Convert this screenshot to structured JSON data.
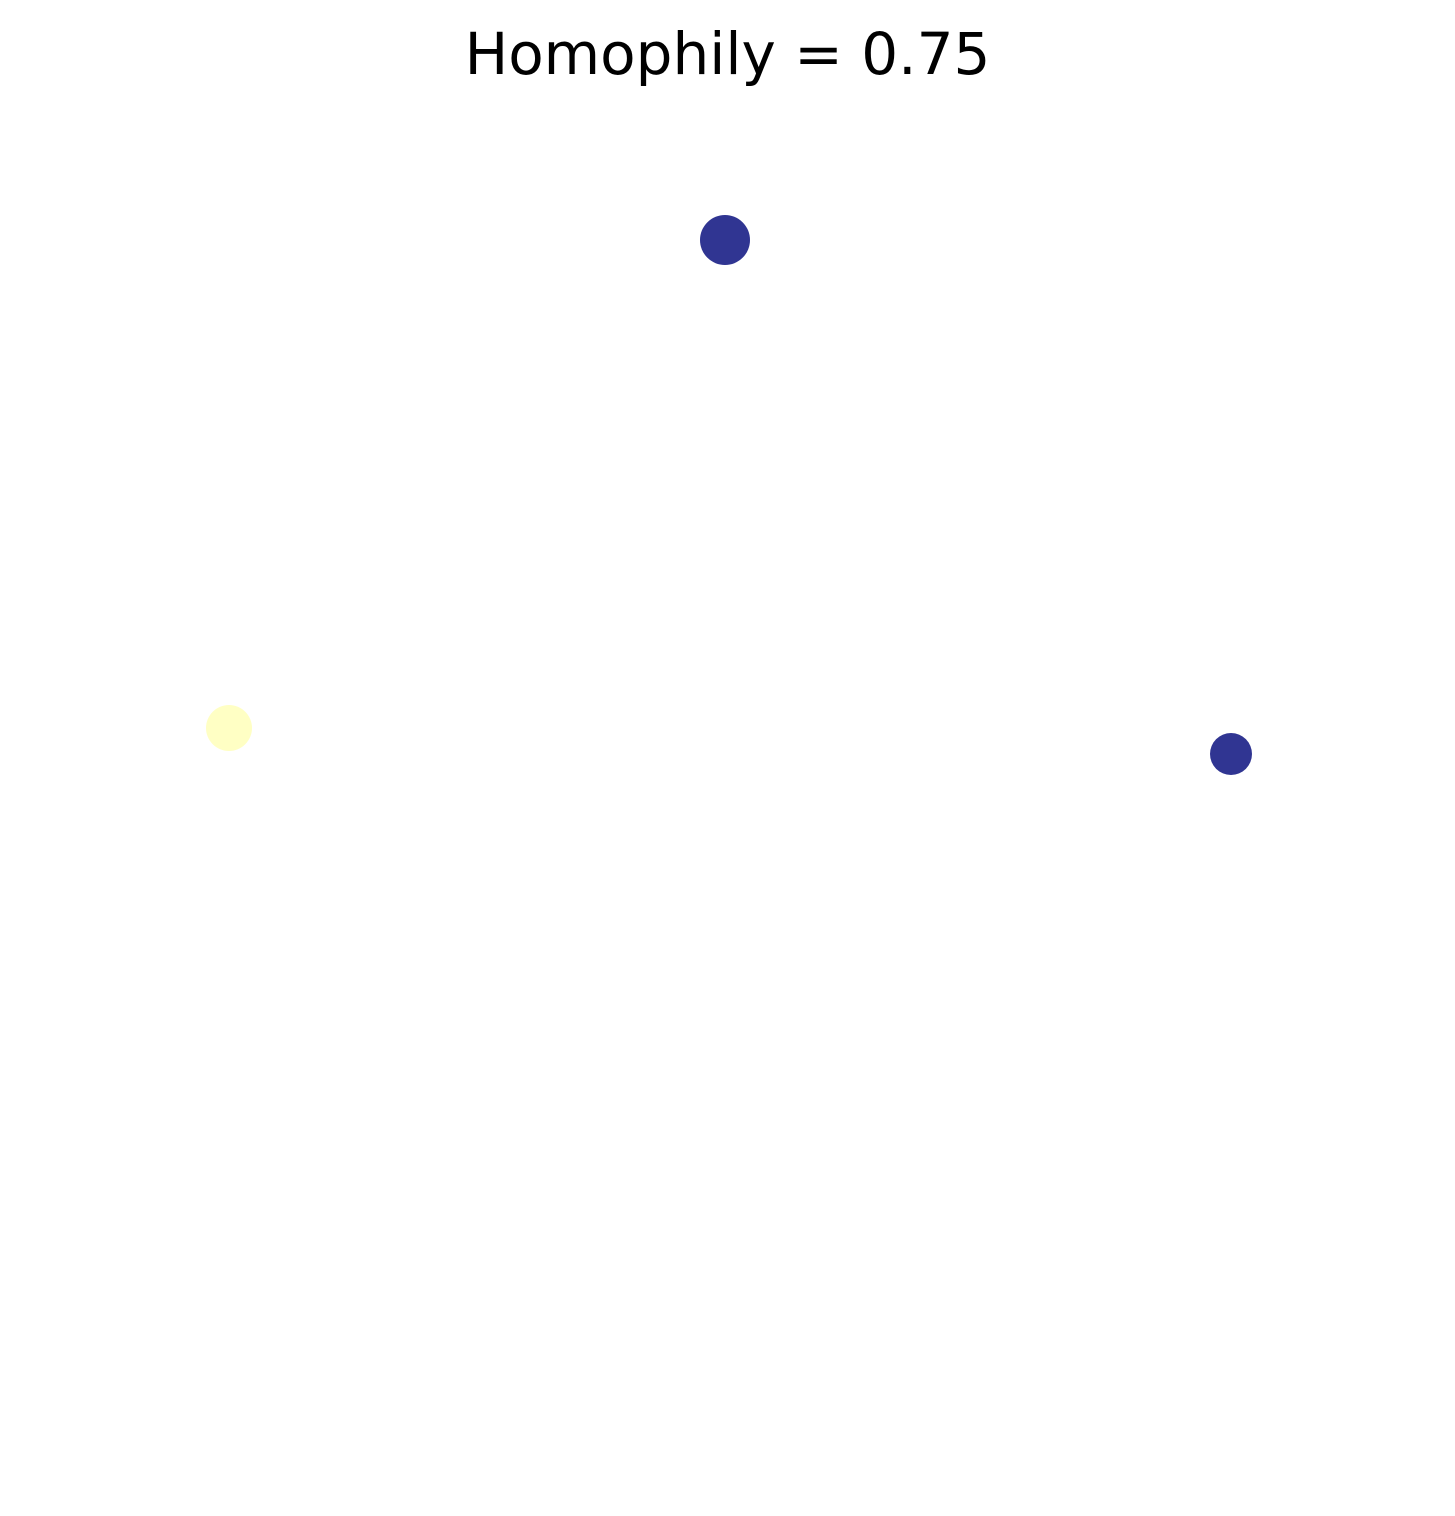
{
  "title": "Homophily = 0.75",
  "palette": {
    "group_a": "#303592",
    "group_b": "#ffffc4",
    "background": "#ffffff"
  },
  "nodes": [
    {
      "id": "node-top",
      "group": "group_a"
    },
    {
      "id": "node-left",
      "group": "group_b"
    },
    {
      "id": "node-right",
      "group": "group_a"
    }
  ],
  "edges": []
}
